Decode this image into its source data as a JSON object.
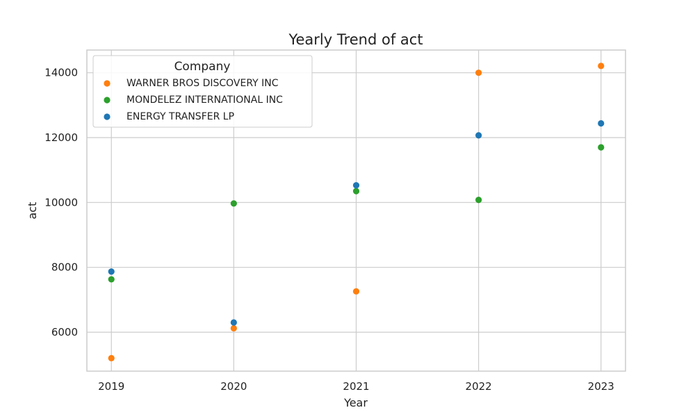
{
  "chart_data": {
    "type": "scatter",
    "title": "Yearly Trend of act",
    "xlabel": "Year",
    "ylabel": "act",
    "x": [
      2019,
      2020,
      2021,
      2022,
      2023
    ],
    "xlim": [
      2018.8,
      2023.2
    ],
    "ylim": [
      4800,
      14700
    ],
    "yticks": [
      6000,
      8000,
      10000,
      12000,
      14000
    ],
    "grid": true,
    "legend": {
      "title": "Company",
      "placement": "top-left"
    },
    "series": [
      {
        "name": "WARNER BROS DISCOVERY INC",
        "color": "#ff7f0e",
        "values": [
          5200,
          6120,
          7260,
          14000,
          14210
        ]
      },
      {
        "name": "MONDELEZ INTERNATIONAL INC",
        "color": "#2ca02c",
        "values": [
          7630,
          9970,
          10350,
          10080,
          11700
        ]
      },
      {
        "name": "ENERGY TRANSFER LP",
        "color": "#1f77b4",
        "values": [
          7870,
          6300,
          10530,
          12070,
          12440
        ]
      }
    ]
  }
}
